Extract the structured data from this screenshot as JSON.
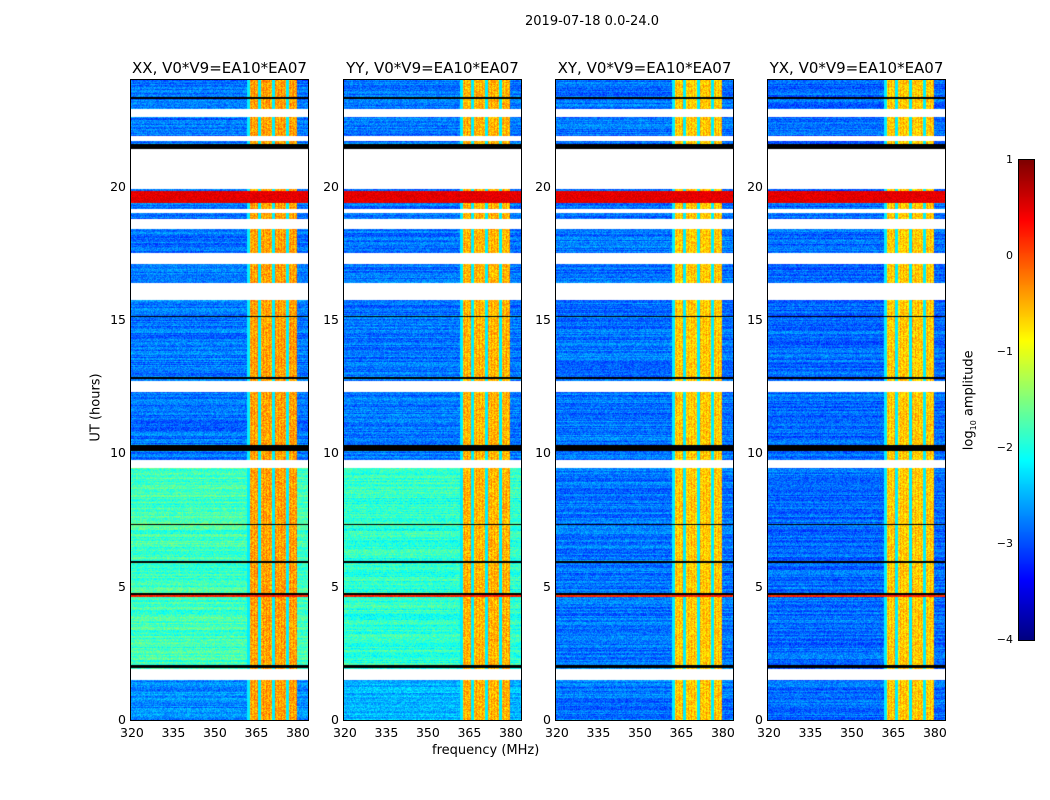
{
  "chart_data": {
    "type": "heatmap",
    "suptitle": "2019-07-18 0.0-24.0",
    "xlabel": "frequency (MHz)",
    "ylabel": "UT (hours)",
    "xlim": [
      320,
      384
    ],
    "ylim": [
      0,
      24
    ],
    "xticks": [
      320,
      335,
      350,
      365,
      380
    ],
    "yticks": [
      0,
      5,
      10,
      15,
      20
    ],
    "colorbar": {
      "label": "log10 amplitude",
      "label_main": "log",
      "label_sub": "10",
      "label_rest": " amplitude",
      "range": [
        -4,
        1
      ],
      "ticks": [
        1,
        0,
        -1,
        -2,
        -3,
        -4
      ],
      "tick_labels": [
        "1",
        "0",
        "−1",
        "−2",
        "−3",
        "−4"
      ],
      "colormap": "jet"
    },
    "gaps_hours": [
      [
        1.5,
        1.9
      ],
      [
        9.45,
        9.75
      ],
      [
        12.3,
        12.7
      ],
      [
        15.75,
        16.4
      ],
      [
        17.1,
        17.5
      ],
      [
        18.4,
        18.8
      ],
      [
        19.0,
        19.15
      ],
      [
        19.9,
        21.4
      ],
      [
        21.7,
        21.9
      ],
      [
        22.6,
        22.9
      ]
    ],
    "flag_lines_hours": [
      [
        1.95,
        2.05
      ],
      [
        4.7,
        4.76
      ],
      [
        5.9,
        5.95
      ],
      [
        7.3,
        7.35
      ],
      [
        10.1,
        10.3
      ],
      [
        12.8,
        12.85
      ],
      [
        15.1,
        15.15
      ],
      [
        21.4,
        21.6
      ],
      [
        23.3,
        23.35
      ]
    ],
    "strong_bands": [
      {
        "hours": [
          19.4,
          19.85
        ],
        "level": 0.5
      },
      {
        "hours": [
          4.6,
          4.7
        ],
        "level": 0.2
      }
    ],
    "rfi_channels_mhz": [
      [
        363,
        366
      ],
      [
        367,
        371
      ],
      [
        372,
        376
      ],
      [
        377,
        380
      ]
    ],
    "panels": [
      {
        "title": "XX, V0*V9=EA10*EA07",
        "base": [
          [
            0,
            1.5,
            -2.7
          ],
          [
            1.5,
            9.5,
            -1.8
          ],
          [
            9.5,
            24,
            -2.8
          ]
        ],
        "rfi_level": -0.6
      },
      {
        "title": "YY, V0*V9=EA10*EA07",
        "base": [
          [
            0,
            1.5,
            -2.5
          ],
          [
            1.5,
            9.5,
            -1.9
          ],
          [
            9.5,
            24,
            -2.8
          ]
        ],
        "rfi_level": -0.7
      },
      {
        "title": "XY, V0*V9=EA10*EA07",
        "base": [
          [
            0,
            24,
            -2.8
          ]
        ],
        "rfi_level": -0.8
      },
      {
        "title": "YX, V0*V9=EA10*EA07",
        "base": [
          [
            0,
            24,
            -2.85
          ]
        ],
        "rfi_level": -0.8
      }
    ]
  }
}
